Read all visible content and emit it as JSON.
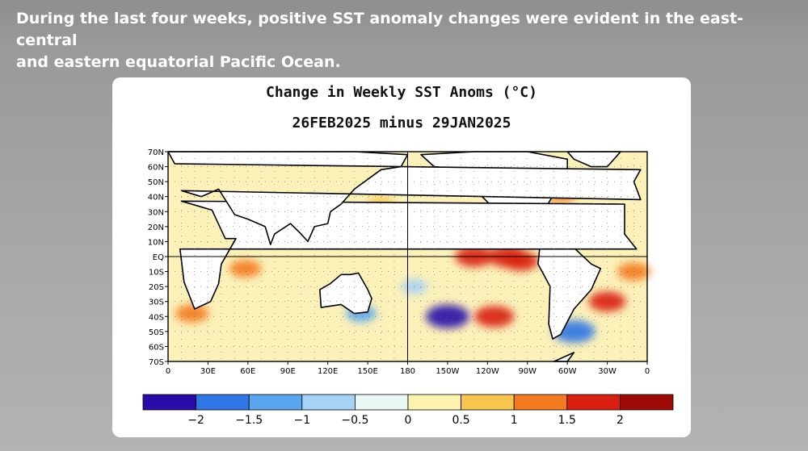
{
  "headline": {
    "line1": "During the last four weeks, positive SST anomaly changes were evident in the east-central",
    "line2": "and eastern equatorial Pacific Ocean."
  },
  "chart_data": {
    "type": "heatmap",
    "title": "Change in Weekly SST Anoms (°C)",
    "subtitle": "26FEB2025 minus 29JAN2025",
    "y_ticks": [
      "70N",
      "60N",
      "50N",
      "40N",
      "30N",
      "20N",
      "10N",
      "EQ",
      "10S",
      "20S",
      "30S",
      "40S",
      "50S",
      "60S",
      "70S"
    ],
    "x_ticks": [
      "0",
      "30E",
      "60E",
      "90E",
      "120E",
      "150E",
      "180",
      "150W",
      "120W",
      "90W",
      "60W",
      "30W",
      "0"
    ],
    "xlim": [
      0,
      360
    ],
    "ylim": [
      -70,
      70
    ],
    "colorbar": {
      "labels": [
        "−2",
        "−1.5",
        "−1",
        "−0.5",
        "0",
        "0.5",
        "1",
        "1.5",
        "2"
      ],
      "colors": [
        "#2a0aa8",
        "#2f77e6",
        "#5aa6ee",
        "#a6d2f6",
        "#e8f8f5",
        "#fbf3ae",
        "#f8c54e",
        "#f47a20",
        "#d92010",
        "#9e0a06"
      ]
    },
    "anomalies": [
      {
        "lon": 230,
        "lat": 0,
        "value": 1.7
      },
      {
        "lon": 255,
        "lat": 0,
        "value": 1.8
      },
      {
        "lon": 265,
        "lat": -3,
        "value": 1.5
      },
      {
        "lon": 210,
        "lat": -40,
        "value": -2.1
      },
      {
        "lon": 245,
        "lat": -40,
        "value": 1.8
      },
      {
        "lon": 305,
        "lat": -50,
        "value": -2.0
      },
      {
        "lon": 330,
        "lat": -30,
        "value": 1.6
      },
      {
        "lon": 58,
        "lat": -8,
        "value": 1.2
      },
      {
        "lon": 18,
        "lat": -38,
        "value": 1.3
      },
      {
        "lon": 145,
        "lat": -38,
        "value": -1.1
      },
      {
        "lon": 160,
        "lat": 35,
        "value": 0.8
      },
      {
        "lon": 185,
        "lat": -20,
        "value": -0.8
      },
      {
        "lon": 295,
        "lat": 42,
        "value": 1.2
      },
      {
        "lon": 350,
        "lat": -10,
        "value": 1.3
      }
    ]
  }
}
